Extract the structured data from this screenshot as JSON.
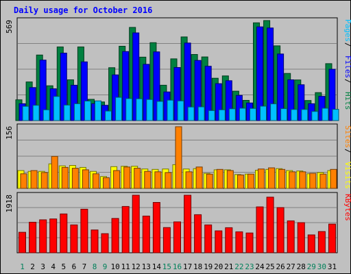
{
  "chart_data": {
    "type": "bar",
    "title": "Daily usage for October 2016",
    "categories": [
      "1",
      "2",
      "3",
      "4",
      "5",
      "6",
      "7",
      "8",
      "9",
      "10",
      "11",
      "12",
      "13",
      "14",
      "15",
      "16",
      "17",
      "18",
      "19",
      "20",
      "21",
      "22",
      "23",
      "24",
      "25",
      "26",
      "27",
      "28",
      "29",
      "30",
      "31"
    ],
    "weekend_days": [
      "1",
      "8",
      "9",
      "15",
      "16",
      "22",
      "23",
      "29",
      "30"
    ],
    "panels": [
      {
        "id": "hits-files-pages",
        "ymax_label": "569",
        "ylim": [
          0,
          569
        ],
        "legend": [
          {
            "label": "Pages",
            "color": "#00bfff"
          },
          {
            "label": "Files",
            "color": "#0000ff"
          },
          {
            "label": "Hits",
            "color": "#008040"
          }
        ],
        "series": [
          {
            "name": "Hits",
            "color": "#008040",
            "values": [
              118,
              220,
              373,
              198,
              419,
              232,
              419,
              121,
              106,
              301,
              423,
              530,
              361,
              443,
              201,
              351,
              476,
              376,
              362,
              241,
              254,
              167,
              115,
              556,
              569,
              425,
              268,
              231,
              114,
              159,
              324
            ]
          },
          {
            "name": "Files",
            "color": "#0000ff",
            "values": [
              96,
              188,
              344,
              181,
              384,
              201,
              334,
              96,
              87,
              260,
              393,
              499,
              320,
              391,
              163,
              302,
              441,
              342,
              309,
              210,
              227,
              143,
              100,
              533,
              527,
              379,
              232,
              204,
              96,
              138,
              292
            ]
          },
          {
            "name": "Pages",
            "color": "#00bfff",
            "values": [
              81,
              87,
              61,
              137,
              88,
              96,
              111,
              112,
              54,
              132,
              125,
              124,
              120,
              109,
              116,
              112,
              77,
              78,
              57,
              61,
              67,
              70,
              69,
              82,
              95,
              68,
              63,
              63,
              52,
              70,
              64
            ]
          }
        ]
      },
      {
        "id": "visits-sites",
        "ymax_label": "156",
        "ylim": [
          0,
          156
        ],
        "legend": [
          {
            "label": "Sites",
            "color": "#ff8000"
          },
          {
            "label": "Visits",
            "color": "#ffff00"
          }
        ],
        "series": [
          {
            "name": "Visits",
            "color": "#ffff00",
            "values": [
              45,
              43,
              43,
              62,
              57,
              58,
              53,
              43,
              30,
              55,
              56,
              56,
              49,
              48,
              49,
              60,
              49,
              50,
              38,
              47,
              47,
              35,
              36,
              46,
              48,
              50,
              45,
              44,
              37,
              40,
              45
            ]
          },
          {
            "name": "Sites",
            "color": "#ff8000",
            "values": [
              37,
              45,
              40,
              81,
              53,
              51,
              47,
              37,
              27,
              45,
              54,
              51,
              43,
              42,
              40,
              156,
              42,
              54,
              36,
              48,
              45,
              34,
              36,
              49,
              52,
              48,
              42,
              42,
              38,
              36,
              48
            ]
          }
        ]
      },
      {
        "id": "kbytes",
        "ymax_label": "1918",
        "ylim": [
          0,
          1918
        ],
        "legend": [
          {
            "label": "KBytes",
            "color": "#ff0000"
          }
        ],
        "series": [
          {
            "name": "KBytes",
            "color": "#ff0000",
            "values": [
              682,
              1018,
              1098,
              1129,
              1295,
              929,
              1452,
              760,
              637,
              1145,
              1543,
              1918,
              1224,
              1678,
              840,
              1030,
              1918,
              1270,
              930,
              730,
              835,
              698,
              660,
              1529,
              1853,
              1506,
              1065,
              1004,
              596,
              707,
              957
            ]
          }
        ]
      }
    ]
  }
}
